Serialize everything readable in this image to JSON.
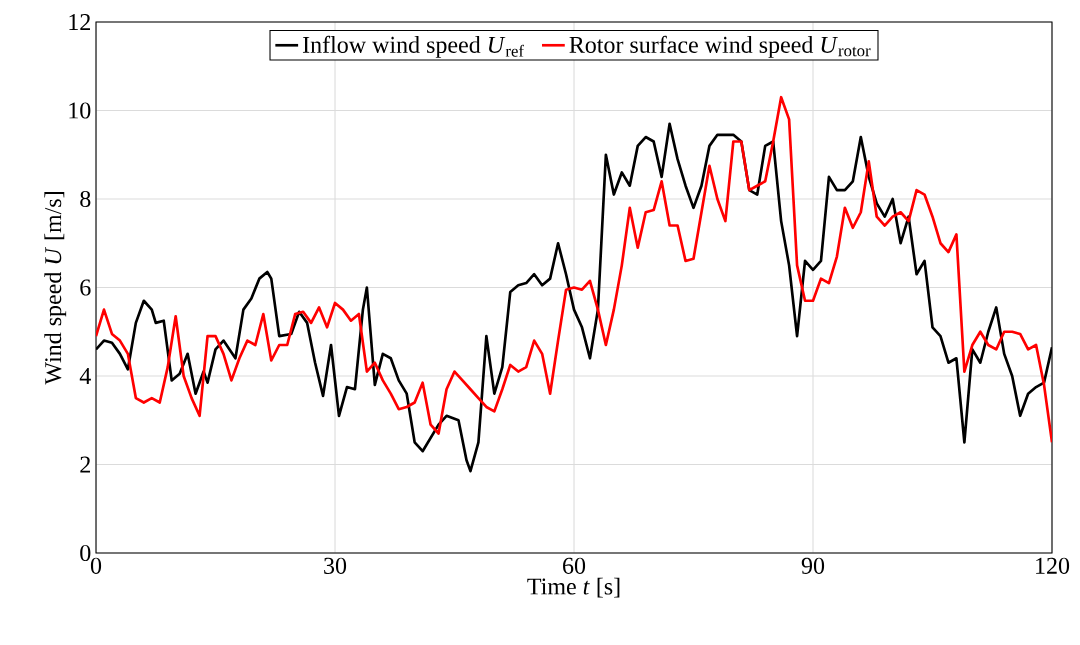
{
  "chart_data": {
    "type": "line",
    "xlabel": "Time *t* [s]",
    "ylabel": "Wind speed *U* [m/s]",
    "xlim": [
      0,
      120
    ],
    "ylim": [
      0,
      12
    ],
    "xticks": [
      0,
      30,
      60,
      90,
      120
    ],
    "yticks": [
      0,
      2,
      4,
      6,
      8,
      10,
      12
    ],
    "grid": true,
    "legend": "top",
    "marker": "none",
    "line_style": "solid",
    "series": [
      {
        "name": "Inflow wind speed  *U*$_{ref}$",
        "color": "#000000",
        "x": [
          0,
          1,
          2,
          3,
          4,
          5,
          6,
          7,
          7.5,
          8.5,
          9.5,
          10.5,
          11.5,
          12.5,
          13.5,
          14,
          15,
          16,
          17.5,
          18.5,
          19.5,
          20.5,
          21.5,
          22,
          23,
          24.5,
          25.5,
          26.5,
          27.5,
          28.5,
          29.5,
          30.5,
          31.5,
          32.5,
          33.5,
          34,
          35,
          36,
          37,
          38,
          39,
          40,
          41,
          42,
          43,
          44,
          45.5,
          46.5,
          47,
          48,
          49,
          50,
          51,
          52,
          53,
          54,
          55,
          56,
          57,
          58,
          59,
          60,
          61,
          62,
          63,
          64,
          65,
          66,
          67,
          68,
          69,
          70,
          71,
          72,
          73,
          74,
          75,
          76,
          77,
          78,
          80,
          81,
          82,
          83,
          84,
          85,
          86,
          87,
          88,
          89,
          90,
          91,
          92,
          93,
          94,
          95,
          96,
          97,
          98,
          99,
          100,
          101,
          102,
          103,
          104,
          105,
          106,
          107,
          108,
          109,
          110,
          111,
          112,
          113,
          114,
          115,
          116,
          117,
          118,
          119,
          120
        ],
        "values": [
          4.6,
          4.8,
          4.75,
          4.5,
          4.15,
          5.2,
          5.7,
          5.5,
          5.2,
          5.25,
          3.9,
          4.05,
          4.5,
          3.6,
          4.1,
          3.85,
          4.6,
          4.8,
          4.4,
          5.5,
          5.75,
          6.2,
          6.35,
          6.2,
          4.9,
          4.95,
          5.45,
          5.2,
          4.3,
          3.55,
          4.7,
          3.1,
          3.75,
          3.7,
          5.5,
          6.0,
          3.8,
          4.5,
          4.4,
          3.9,
          3.6,
          2.5,
          2.3,
          2.6,
          2.9,
          3.1,
          3.0,
          2.1,
          1.85,
          2.5,
          4.9,
          3.6,
          4.2,
          5.9,
          6.05,
          6.1,
          6.3,
          6.05,
          6.2,
          7.0,
          6.3,
          5.5,
          5.1,
          4.4,
          5.5,
          9.0,
          8.1,
          8.6,
          8.3,
          9.2,
          9.4,
          9.3,
          8.5,
          9.7,
          8.9,
          8.3,
          7.8,
          8.3,
          9.2,
          9.45,
          9.45,
          9.3,
          8.2,
          8.1,
          9.2,
          9.3,
          7.5,
          6.5,
          4.9,
          6.6,
          6.4,
          6.6,
          8.5,
          8.2,
          8.2,
          8.4,
          9.4,
          8.5,
          7.9,
          7.6,
          8.0,
          7.0,
          7.6,
          6.3,
          6.6,
          5.1,
          4.9,
          4.3,
          4.4,
          2.5,
          4.6,
          4.3,
          5.0,
          5.55,
          4.5,
          4.0,
          3.1,
          3.6,
          3.75,
          3.85,
          4.65
        ]
      },
      {
        "name": "Rotor surface wind speed  *U*$_{rotor}$",
        "color": "#ff0000",
        "x": [
          0,
          1,
          2,
          3,
          4,
          5,
          6,
          7,
          8,
          9,
          10,
          11,
          12,
          13,
          14,
          15,
          16,
          17,
          18,
          19,
          20,
          21,
          22,
          23,
          24,
          25,
          26,
          27,
          28,
          29,
          30,
          31,
          32,
          33,
          34,
          35,
          36,
          37,
          38,
          39,
          40,
          41,
          42,
          43,
          44,
          45,
          46,
          47,
          48,
          49,
          50,
          51,
          52,
          53,
          54,
          55,
          56,
          57,
          58,
          59,
          60,
          61,
          62,
          63,
          64,
          65,
          66,
          67,
          68,
          69,
          70,
          71,
          72,
          73,
          74,
          75,
          76,
          77,
          78,
          79,
          80,
          81,
          82,
          83,
          84,
          85,
          86,
          87,
          88,
          89,
          90,
          91,
          92,
          93,
          94,
          95,
          96,
          97,
          98,
          99,
          100,
          101,
          102,
          103,
          104,
          105,
          106,
          107,
          108,
          109,
          110,
          111,
          112,
          113,
          114,
          115,
          116,
          117,
          118,
          119,
          120
        ],
        "values": [
          4.9,
          5.5,
          4.95,
          4.8,
          4.5,
          3.5,
          3.4,
          3.5,
          3.4,
          4.2,
          5.35,
          4.0,
          3.5,
          3.1,
          4.9,
          4.9,
          4.5,
          3.9,
          4.4,
          4.8,
          4.7,
          5.4,
          4.35,
          4.7,
          4.7,
          5.4,
          5.45,
          5.2,
          5.55,
          5.1,
          5.65,
          5.5,
          5.25,
          5.4,
          4.1,
          4.3,
          3.9,
          3.6,
          3.25,
          3.3,
          3.4,
          3.85,
          2.9,
          2.7,
          3.7,
          4.1,
          3.9,
          3.7,
          3.5,
          3.3,
          3.2,
          3.7,
          4.25,
          4.1,
          4.2,
          4.8,
          4.5,
          3.6,
          4.8,
          5.95,
          6.0,
          5.95,
          6.15,
          5.5,
          4.7,
          5.5,
          6.5,
          7.8,
          6.9,
          7.7,
          7.75,
          8.4,
          7.4,
          7.4,
          6.6,
          6.65,
          7.7,
          8.75,
          8.0,
          7.5,
          9.3,
          9.3,
          8.2,
          8.3,
          8.4,
          9.3,
          10.3,
          9.8,
          6.5,
          5.7,
          5.7,
          6.2,
          6.1,
          6.7,
          7.8,
          7.35,
          7.7,
          8.85,
          7.6,
          7.4,
          7.6,
          7.7,
          7.5,
          8.2,
          8.1,
          7.6,
          7.0,
          6.8,
          7.2,
          4.1,
          4.7,
          5.0,
          4.7,
          4.6,
          5.0,
          5.0,
          4.95,
          4.6,
          4.7,
          3.8,
          2.5
        ]
      }
    ]
  }
}
